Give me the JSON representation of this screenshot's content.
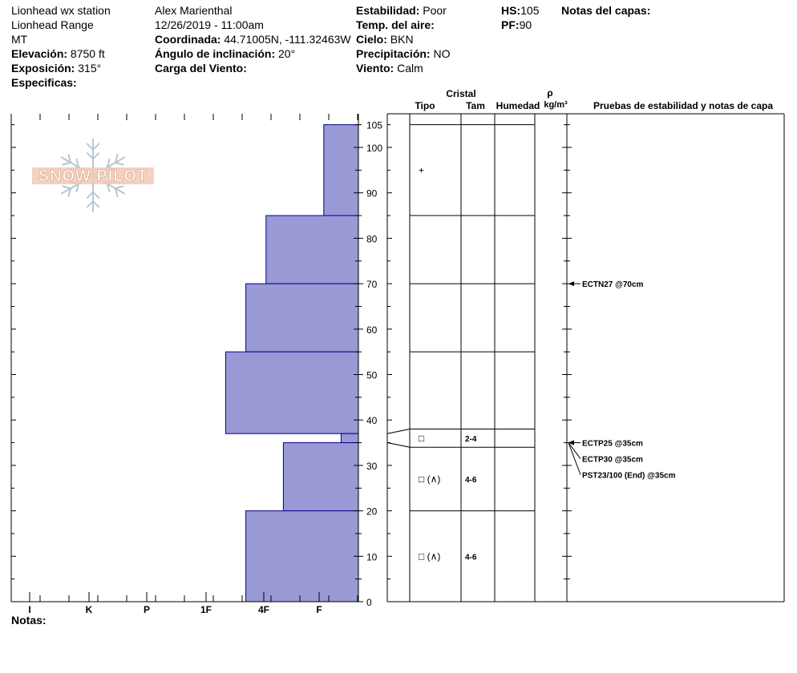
{
  "header": {
    "station": "Lionhead wx station",
    "range": "Lionhead Range",
    "state": "MT",
    "elevation_label": "Elevación:",
    "elevation_value": "8750 ft",
    "aspect_label": "Exposición:",
    "aspect_value": "315°",
    "specifics_label": "Especificas:",
    "observer": "Alex Marienthal",
    "datetime": "12/26/2019 - 11:00am",
    "coord_label": "Coordinada:",
    "coord_value": "44.71005N, -111.32463W",
    "slope_label": "Ángulo de inclinación:",
    "slope_value": "20°",
    "wind_load_label": "Carga del Viento:",
    "stability_label": "Estabilidad:",
    "stability_value": "Poor",
    "air_temp_label": "Temp. del aire:",
    "sky_label": "Cielo:",
    "sky_value": "BKN",
    "precip_label": "Precipitación:",
    "precip_value": "NO",
    "wind_label": "Viento:",
    "wind_value": "Calm",
    "hs_label": "HS:",
    "hs_value": "105",
    "pf_label": "PF:",
    "pf_value": "90",
    "layer_notes_label": "Notas del capas:"
  },
  "logo_text": "SNOW PILOT",
  "columns": {
    "crystal": "Cristal",
    "type": "Tipo",
    "size": "Tam",
    "moisture": "Humedad",
    "rho": "ρ",
    "density_unit": "kg/m³",
    "tests": "Pruebas de estabilidad y notas de capa"
  },
  "notes_label": "Notas:",
  "chart_data": {
    "type": "bar",
    "orientation": "horizontal-step",
    "hardness_categories": [
      "I",
      "K",
      "P",
      "1F",
      "4F",
      "F"
    ],
    "y_ticks": [
      "0",
      "10",
      "20",
      "30",
      "40",
      "50",
      "60",
      "70",
      "80",
      "90",
      "100",
      "105"
    ],
    "ylim": [
      0,
      105
    ],
    "hardness_layers": [
      {
        "bottom": 85,
        "top": 105,
        "hardness": 0.6
      },
      {
        "bottom": 70,
        "top": 85,
        "hardness": 1.6
      },
      {
        "bottom": 55,
        "top": 70,
        "hardness": 1.95
      },
      {
        "bottom": 37,
        "top": 55,
        "hardness": 2.3
      },
      {
        "bottom": 35,
        "top": 37,
        "hardness": 0.3
      },
      {
        "bottom": 20,
        "top": 35,
        "hardness": 1.3
      },
      {
        "bottom": 0,
        "top": 20,
        "hardness": 1.95
      }
    ],
    "layer_boundaries": [
      105,
      85,
      70,
      55,
      38,
      34,
      20
    ],
    "layer_details": [
      {
        "at": 95,
        "type": "+",
        "size": ""
      },
      {
        "at": 36,
        "type": "□",
        "size": "2-4"
      },
      {
        "at": 27,
        "type": "□ (∧)",
        "size": "4-6"
      },
      {
        "at": 10,
        "type": "□ (∧)",
        "size": "4-6"
      }
    ],
    "tests": [
      {
        "at": 70,
        "label": "ECTN27 @70cm"
      },
      {
        "at": 35,
        "label": "ECTP25 @35cm"
      },
      {
        "at": 35,
        "label": "ECTP30 @35cm"
      },
      {
        "at": 35,
        "label": "PST23/100 (End) @35cm"
      }
    ],
    "bar_color": "#9999d6",
    "edge_color": "#00008b"
  }
}
